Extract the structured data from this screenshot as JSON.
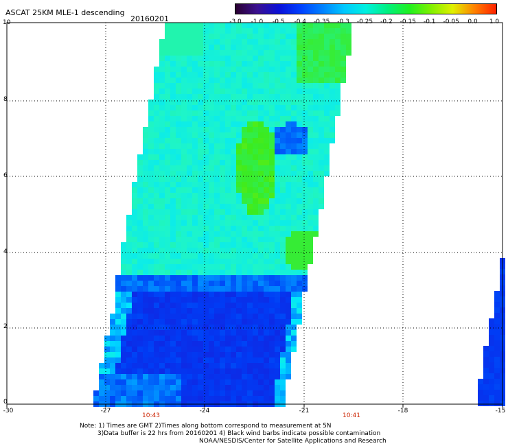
{
  "header": {
    "title": "ASCAT 25KM MLE-1 descending",
    "date": "20160201"
  },
  "colorbar": {
    "labels": [
      "-3.0",
      "-1.0",
      "-0.5",
      "-0.4",
      "-0.35",
      "-0.3",
      "-0.25",
      "-0.2",
      "-0.15",
      "-0.1",
      "-0.05",
      "0.0",
      "1.0"
    ],
    "colors": [
      "#2a0030",
      "#3a1090",
      "#0a10d8",
      "#0040ff",
      "#0080ff",
      "#00c8ff",
      "#00f0e0",
      "#00f080",
      "#20f020",
      "#80f000",
      "#e0f000",
      "#ff8000",
      "#ff2000"
    ]
  },
  "axes": {
    "x_ticks": [
      "-30",
      "-27",
      "-24",
      "-21",
      "-18",
      "-15"
    ],
    "y_ticks": [
      "0",
      "2",
      "4",
      "6",
      "8",
      "10"
    ],
    "times": [
      "10:43",
      "10:41"
    ]
  },
  "footer": {
    "line1": "Note: 1) Times are GMT 2)Times along bottom correspond to measurement at 5N",
    "line2": "3)Data buffer is 22 hrs from 20160201 4) Black wind barbs indicate possible contamination",
    "line3": "NOAA/NESDIS/Center for Satellite Applications and Research"
  }
}
